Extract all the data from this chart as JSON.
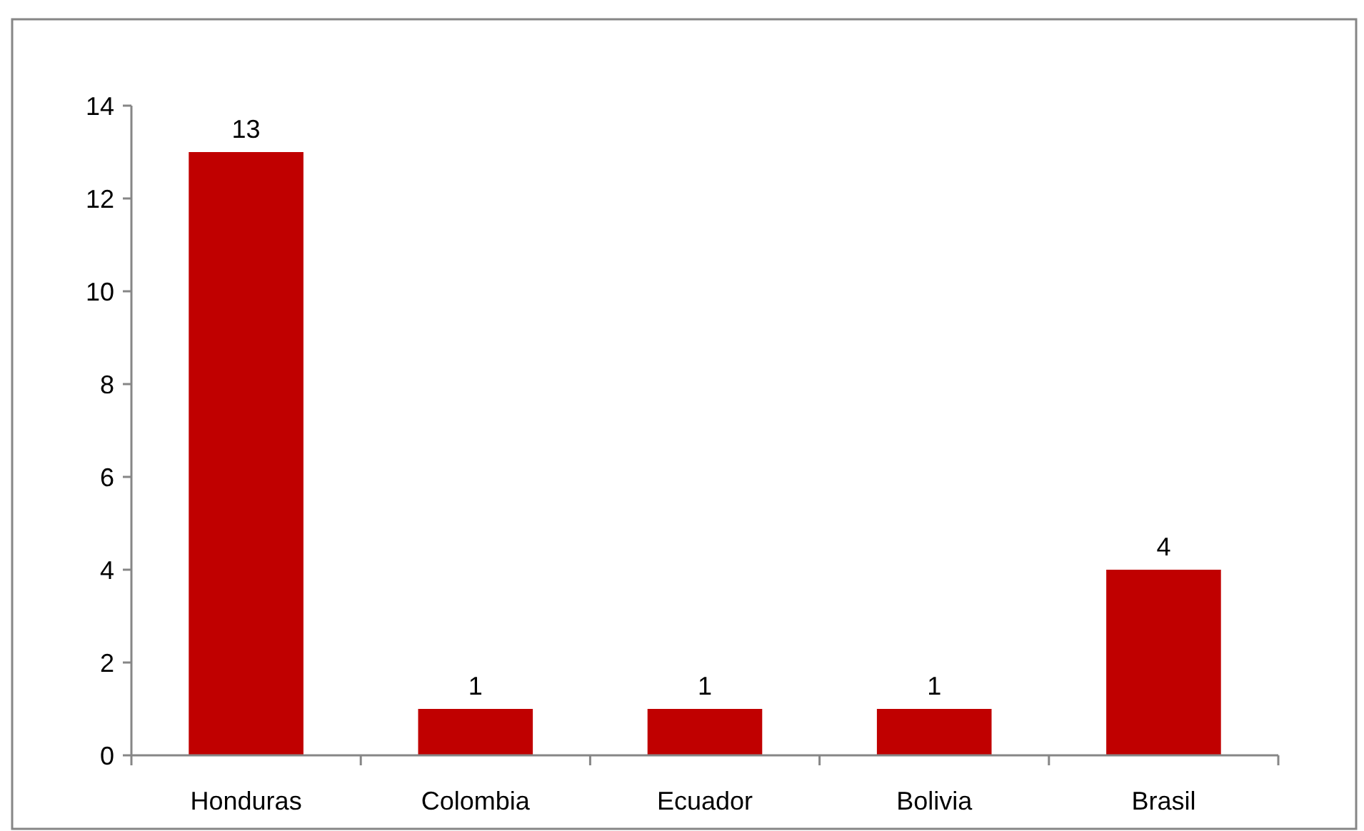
{
  "chart_data": {
    "type": "bar",
    "categories": [
      "Honduras",
      "Colombia",
      "Ecuador",
      "Bolivia",
      "Brasil"
    ],
    "values": [
      13,
      1,
      1,
      1,
      4
    ],
    "color": "#c00000",
    "ylim": [
      0,
      14
    ],
    "yticks": [
      0,
      2,
      4,
      6,
      8,
      10,
      12,
      14
    ],
    "data_labels": true
  }
}
